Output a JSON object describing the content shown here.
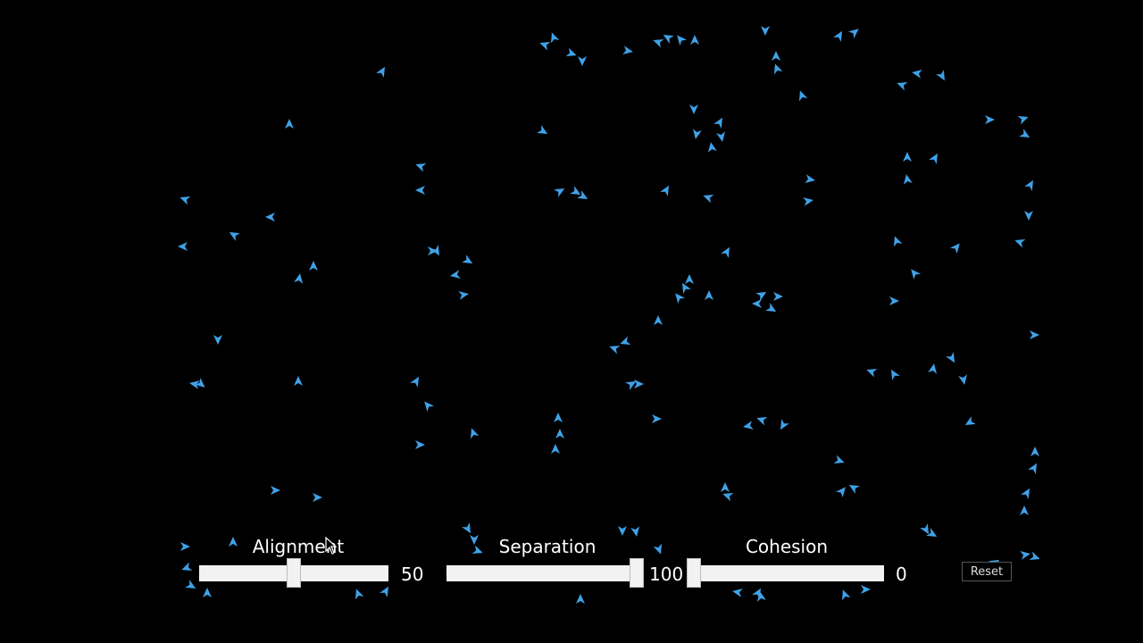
{
  "colors": {
    "background": "#000000",
    "boid": "#3fa2e8",
    "control": "#f2f2f2",
    "text": "#ffffff"
  },
  "sliders": [
    {
      "label": "Alignment",
      "value": "50"
    },
    {
      "label": "Separation",
      "value": "100"
    },
    {
      "label": "Cohesion",
      "value": "0"
    }
  ],
  "reset_label": "Reset",
  "cursor_icon": "pointer-arrow-icon"
}
